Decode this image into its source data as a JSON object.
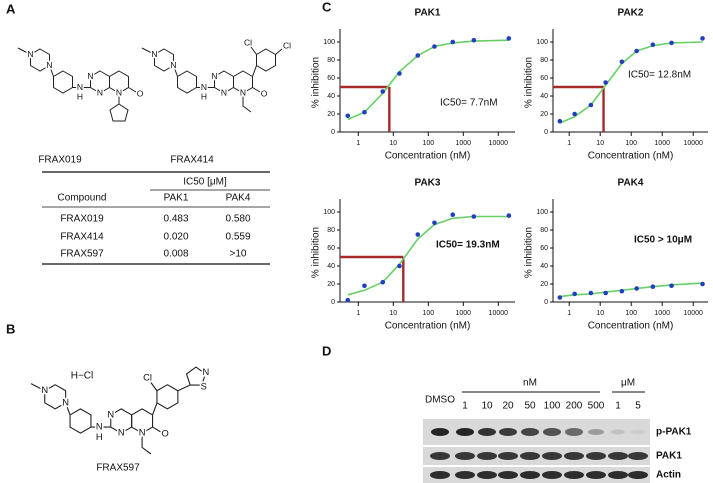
{
  "panel_labels": [
    "A",
    "B",
    "C",
    "D"
  ],
  "structures": {
    "frax019": {
      "name": "FRAX019",
      "atoms": [
        "N",
        "N",
        "N",
        "N",
        "N",
        "H",
        "N",
        "O"
      ]
    },
    "frax414": {
      "name": "FRAX414",
      "atoms": [
        "N",
        "N",
        "N",
        "N",
        "N",
        "H",
        "N",
        "O",
        "Cl",
        "Cl"
      ]
    },
    "frax597": {
      "name": "FRAX597",
      "salt": "H−Cl",
      "atoms": [
        "N",
        "N",
        "N",
        "N",
        "N",
        "H",
        "N",
        "O",
        "Cl",
        "N",
        "S"
      ]
    }
  },
  "table": {
    "header_group": "IC50 [μM]",
    "columns": [
      "Compound",
      "PAK1",
      "PAK4"
    ],
    "rows": [
      [
        "FRAX019",
        "0.483",
        "0.580"
      ],
      [
        "FRAX414",
        "0.020",
        "0.559"
      ],
      [
        "FRAX597",
        "0.008",
        ">10"
      ]
    ]
  },
  "chart_data": [
    {
      "type": "scatter",
      "title": "PAK1",
      "x_label": "Concentration (nM)",
      "y_label": "% inhibition",
      "annotation": "IC50= 7.7nM",
      "x": [
        0.5,
        1.5,
        5,
        15,
        50,
        150,
        500,
        2000,
        20000
      ],
      "values": [
        18,
        22,
        45,
        65,
        85,
        95,
        100,
        102,
        104
      ],
      "fit": [
        14,
        22,
        43,
        67,
        85,
        95,
        99,
        101,
        102
      ],
      "color": "#1f3fbf",
      "fit_color": "#66d066",
      "ic50_line": {
        "x": 7.7,
        "y": 50,
        "color": "#a52a2a"
      },
      "log_x": true,
      "xlim": [
        0.3,
        30000
      ],
      "xticks": [
        1,
        10,
        100,
        1000,
        10000
      ],
      "ylim": [
        0,
        110
      ],
      "yticks": [
        0,
        20,
        40,
        60,
        80,
        100
      ]
    },
    {
      "type": "scatter",
      "title": "PAK2",
      "x_label": "Concentration (nM)",
      "y_label": "% inhibition",
      "annotation": "IC50= 12.8nM",
      "x": [
        0.5,
        1.5,
        5,
        15,
        50,
        150,
        500,
        2000,
        20000
      ],
      "values": [
        12,
        20,
        30,
        55,
        78,
        90,
        97,
        99,
        104
      ],
      "fit": [
        10,
        17,
        30,
        52,
        76,
        90,
        96,
        99,
        100
      ],
      "color": "#1f3fbf",
      "fit_color": "#66d066",
      "ic50_line": {
        "x": 12.8,
        "y": 50,
        "color": "#a52a2a"
      },
      "log_x": true,
      "xlim": [
        0.3,
        30000
      ],
      "xticks": [
        1,
        10,
        100,
        1000,
        10000
      ],
      "ylim": [
        0,
        110
      ],
      "yticks": [
        0,
        20,
        40,
        60,
        80,
        100
      ]
    },
    {
      "type": "scatter",
      "title": "PAK3",
      "x_label": "Concentration (nM)",
      "y_label": "% inhibition",
      "annotation": "IC50= 19.3nM",
      "x": [
        0.5,
        1.5,
        5,
        15,
        50,
        150,
        500,
        2000,
        20000
      ],
      "values": [
        2,
        18,
        22,
        40,
        75,
        88,
        97,
        95,
        96
      ],
      "fit": [
        8,
        13,
        22,
        42,
        70,
        86,
        93,
        95,
        95
      ],
      "color": "#1f3fbf",
      "fit_color": "#66d066",
      "ic50_line": {
        "x": 19.3,
        "y": 50,
        "color": "#a52a2a"
      },
      "log_x": true,
      "xlim": [
        0.3,
        30000
      ],
      "xticks": [
        1,
        10,
        100,
        1000,
        10000
      ],
      "ylim": [
        0,
        110
      ],
      "yticks": [
        0,
        20,
        40,
        60,
        80,
        100
      ]
    },
    {
      "type": "scatter",
      "title": "PAK4",
      "x_label": "Concentration (nM)",
      "y_label": "% inhibition",
      "annotation": "IC50 > 10μM",
      "x": [
        0.5,
        1.5,
        5,
        15,
        50,
        150,
        500,
        2000,
        20000
      ],
      "values": [
        5,
        9,
        10,
        10,
        12,
        15,
        17,
        18,
        20
      ],
      "fit": [
        6,
        8,
        9,
        11,
        13,
        15,
        17,
        19,
        21
      ],
      "color": "#1f3fbf",
      "fit_color": "#66d066",
      "log_x": true,
      "xlim": [
        0.3,
        30000
      ],
      "xticks": [
        1,
        10,
        100,
        1000,
        10000
      ],
      "ylim": [
        0,
        110
      ],
      "yticks": [
        0,
        20,
        40,
        60,
        80,
        100
      ]
    }
  ],
  "blot": {
    "control": "DMSO",
    "units": [
      "nM",
      "μM"
    ],
    "doses": [
      "1",
      "10",
      "20",
      "50",
      "100",
      "200",
      "500",
      "1",
      "5"
    ],
    "rows": [
      "p-PAK1",
      "PAK1",
      "Actin"
    ]
  }
}
